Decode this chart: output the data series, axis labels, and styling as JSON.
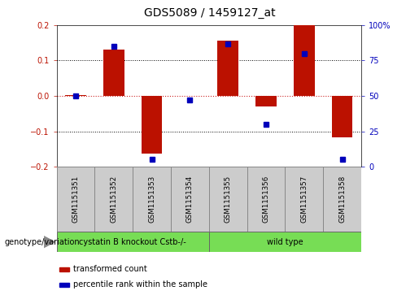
{
  "title": "GDS5089 / 1459127_at",
  "samples": [
    "GSM1151351",
    "GSM1151352",
    "GSM1151353",
    "GSM1151354",
    "GSM1151355",
    "GSM1151356",
    "GSM1151357",
    "GSM1151358"
  ],
  "red_bars": [
    0.002,
    0.13,
    -0.163,
    0.001,
    0.155,
    -0.03,
    0.2,
    -0.118
  ],
  "blue_dots_pct": [
    50,
    85,
    5,
    47,
    87,
    30,
    80,
    5
  ],
  "ylim": [
    -0.2,
    0.2
  ],
  "yticks_left": [
    -0.2,
    -0.1,
    0.0,
    0.1,
    0.2
  ],
  "yticks_right": [
    0,
    25,
    50,
    75,
    100
  ],
  "ytick_right_labels": [
    "0",
    "25",
    "50",
    "75",
    "100%"
  ],
  "red_color": "#BB1100",
  "blue_color": "#0000BB",
  "zero_line_color": "#CC2222",
  "group1_label": "cystatin B knockout Cstb-/-",
  "group2_label": "wild type",
  "group1_samples": [
    0,
    1,
    2,
    3
  ],
  "group2_samples": [
    4,
    5,
    6,
    7
  ],
  "genotype_label": "genotype/variation",
  "legend_red": "transformed count",
  "legend_blue": "percentile rank within the sample",
  "group_color": "#77DD55",
  "bar_width": 0.55,
  "title_fontsize": 10,
  "tick_fontsize": 7,
  "sample_fontsize": 6.2,
  "group_fontsize": 7,
  "legend_fontsize": 7
}
